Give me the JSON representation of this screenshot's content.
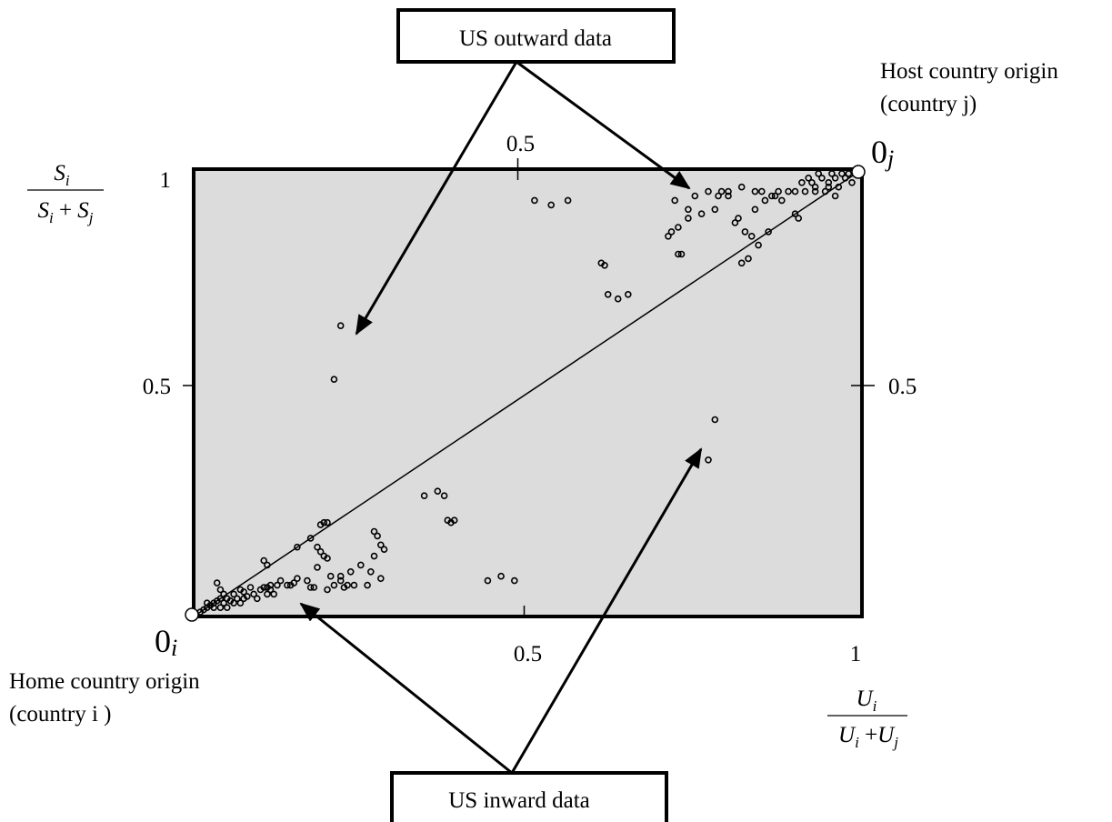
{
  "chart_data": {
    "type": "scatter",
    "xlim": [
      0,
      1
    ],
    "ylim": [
      0,
      1
    ],
    "x_ticks_bottom": [
      {
        "value": 0.5,
        "label": "0.5"
      },
      {
        "value": 1,
        "label": "1"
      }
    ],
    "x_ticks_top": [
      {
        "value": 0.5,
        "label": "0.5"
      }
    ],
    "y_ticks_left": [
      {
        "value": 0.5,
        "label": "0.5"
      },
      {
        "value": 1,
        "label": "1"
      }
    ],
    "y_ticks_right": [
      {
        "value": 0.5,
        "label": "0.5"
      }
    ],
    "ylabel": {
      "num_base": "S",
      "num_sub": "i",
      "den_a": "S",
      "den_a_sub": "i",
      "den_op": " + ",
      "den_b": "S",
      "den_b_sub": "j"
    },
    "xlabel": {
      "num_base": "U",
      "num_sub": "i",
      "den_a": "U",
      "den_a_sub": "i",
      "den_op": " +",
      "den_b": "U",
      "den_b_sub": "j"
    },
    "origins": {
      "home": {
        "symbol": "0",
        "sub": "i",
        "caption_line1": "Home country origin",
        "caption_line2": "(country i )"
      },
      "host": {
        "symbol": "0",
        "sub": "j",
        "caption_line1": "Host country origin",
        "caption_line2": "(country j)"
      }
    },
    "callouts": {
      "outward": "US outward data",
      "inward": "US inward data"
    },
    "diagonal": {
      "from": [
        0,
        0
      ],
      "to": [
        1,
        1
      ]
    },
    "colors": {
      "plot_bg": "#dcdcdc",
      "frame": "#000000",
      "marker": "#000000"
    },
    "series": [
      {
        "name": "",
        "points": [
          [
            0.01,
            0.01
          ],
          [
            0.015,
            0.015
          ],
          [
            0.02,
            0.02
          ],
          [
            0.02,
            0.03
          ],
          [
            0.025,
            0.025
          ],
          [
            0.03,
            0.02
          ],
          [
            0.03,
            0.03
          ],
          [
            0.035,
            0.035
          ],
          [
            0.04,
            0.02
          ],
          [
            0.04,
            0.04
          ],
          [
            0.045,
            0.03
          ],
          [
            0.045,
            0.05
          ],
          [
            0.05,
            0.02
          ],
          [
            0.05,
            0.04
          ],
          [
            0.055,
            0.035
          ],
          [
            0.06,
            0.03
          ],
          [
            0.06,
            0.05
          ],
          [
            0.065,
            0.04
          ],
          [
            0.07,
            0.03
          ],
          [
            0.07,
            0.06
          ],
          [
            0.075,
            0.04
          ],
          [
            0.075,
            0.055
          ],
          [
            0.08,
            0.045
          ],
          [
            0.085,
            0.065
          ],
          [
            0.09,
            0.05
          ],
          [
            0.095,
            0.04
          ],
          [
            0.1,
            0.06
          ],
          [
            0.105,
            0.065
          ],
          [
            0.11,
            0.05
          ],
          [
            0.115,
            0.06
          ],
          [
            0.12,
            0.05
          ],
          [
            0.035,
            0.075
          ],
          [
            0.04,
            0.06
          ],
          [
            0.105,
            0.125
          ],
          [
            0.11,
            0.115
          ],
          [
            0.11,
            0.065
          ],
          [
            0.115,
            0.07
          ],
          [
            0.125,
            0.07
          ],
          [
            0.13,
            0.08
          ],
          [
            0.14,
            0.07
          ],
          [
            0.145,
            0.07
          ],
          [
            0.15,
            0.075
          ],
          [
            0.155,
            0.085
          ],
          [
            0.155,
            0.155
          ],
          [
            0.17,
            0.08
          ],
          [
            0.175,
            0.065
          ],
          [
            0.175,
            0.175
          ],
          [
            0.18,
            0.065
          ],
          [
            0.185,
            0.11
          ],
          [
            0.185,
            0.155
          ],
          [
            0.19,
            0.205
          ],
          [
            0.19,
            0.145
          ],
          [
            0.195,
            0.135
          ],
          [
            0.195,
            0.21
          ],
          [
            0.2,
            0.13
          ],
          [
            0.2,
            0.21
          ],
          [
            0.2,
            0.06
          ],
          [
            0.205,
            0.09
          ],
          [
            0.21,
            0.07
          ],
          [
            0.22,
            0.08
          ],
          [
            0.22,
            0.09
          ],
          [
            0.225,
            0.065
          ],
          [
            0.23,
            0.07
          ],
          [
            0.235,
            0.1
          ],
          [
            0.24,
            0.07
          ],
          [
            0.25,
            0.115
          ],
          [
            0.26,
            0.07
          ],
          [
            0.265,
            0.1
          ],
          [
            0.27,
            0.135
          ],
          [
            0.27,
            0.19
          ],
          [
            0.275,
            0.18
          ],
          [
            0.28,
            0.16
          ],
          [
            0.28,
            0.085
          ],
          [
            0.285,
            0.15
          ],
          [
            0.345,
            0.27
          ],
          [
            0.365,
            0.28
          ],
          [
            0.375,
            0.27
          ],
          [
            0.38,
            0.215
          ],
          [
            0.385,
            0.21
          ],
          [
            0.39,
            0.215
          ],
          [
            0.44,
            0.08
          ],
          [
            0.46,
            0.09
          ],
          [
            0.48,
            0.08
          ],
          [
            0.21,
            0.53
          ],
          [
            0.22,
            0.65
          ],
          [
            0.51,
            0.93
          ],
          [
            0.535,
            0.92
          ],
          [
            0.56,
            0.93
          ],
          [
            0.61,
            0.79
          ],
          [
            0.615,
            0.785
          ],
          [
            0.62,
            0.72
          ],
          [
            0.635,
            0.71
          ],
          [
            0.65,
            0.72
          ],
          [
            0.71,
            0.85
          ],
          [
            0.715,
            0.86
          ],
          [
            0.72,
            0.93
          ],
          [
            0.725,
            0.87
          ],
          [
            0.725,
            0.81
          ],
          [
            0.73,
            0.81
          ],
          [
            0.74,
            0.89
          ],
          [
            0.74,
            0.91
          ],
          [
            0.75,
            0.94
          ],
          [
            0.76,
            0.9
          ],
          [
            0.77,
            0.95
          ],
          [
            0.78,
            0.91
          ],
          [
            0.785,
            0.94
          ],
          [
            0.79,
            0.95
          ],
          [
            0.8,
            0.94
          ],
          [
            0.8,
            0.95
          ],
          [
            0.81,
            0.88
          ],
          [
            0.815,
            0.89
          ],
          [
            0.82,
            0.96
          ],
          [
            0.82,
            0.79
          ],
          [
            0.825,
            0.86
          ],
          [
            0.83,
            0.8
          ],
          [
            0.835,
            0.85
          ],
          [
            0.84,
            0.95
          ],
          [
            0.84,
            0.91
          ],
          [
            0.845,
            0.83
          ],
          [
            0.85,
            0.95
          ],
          [
            0.855,
            0.93
          ],
          [
            0.86,
            0.86
          ],
          [
            0.865,
            0.94
          ],
          [
            0.87,
            0.94
          ],
          [
            0.875,
            0.95
          ],
          [
            0.88,
            0.93
          ],
          [
            0.89,
            0.95
          ],
          [
            0.9,
            0.95
          ],
          [
            0.9,
            0.9
          ],
          [
            0.905,
            0.89
          ],
          [
            0.91,
            0.97
          ],
          [
            0.915,
            0.95
          ],
          [
            0.92,
            0.98
          ],
          [
            0.925,
            0.97
          ],
          [
            0.93,
            0.96
          ],
          [
            0.935,
            0.99
          ],
          [
            0.94,
            0.98
          ],
          [
            0.945,
            0.95
          ],
          [
            0.95,
            0.97
          ],
          [
            0.955,
            0.99
          ],
          [
            0.96,
            0.98
          ],
          [
            0.965,
            0.96
          ],
          [
            0.97,
            0.99
          ],
          [
            0.975,
            0.98
          ],
          [
            0.98,
            0.99
          ],
          [
            0.985,
            0.97
          ],
          [
            0.99,
            0.99
          ],
          [
            0.96,
            0.94
          ],
          [
            0.95,
            0.96
          ],
          [
            0.93,
            0.95
          ],
          [
            0.78,
            0.44
          ],
          [
            0.77,
            0.35
          ]
        ]
      }
    ]
  }
}
